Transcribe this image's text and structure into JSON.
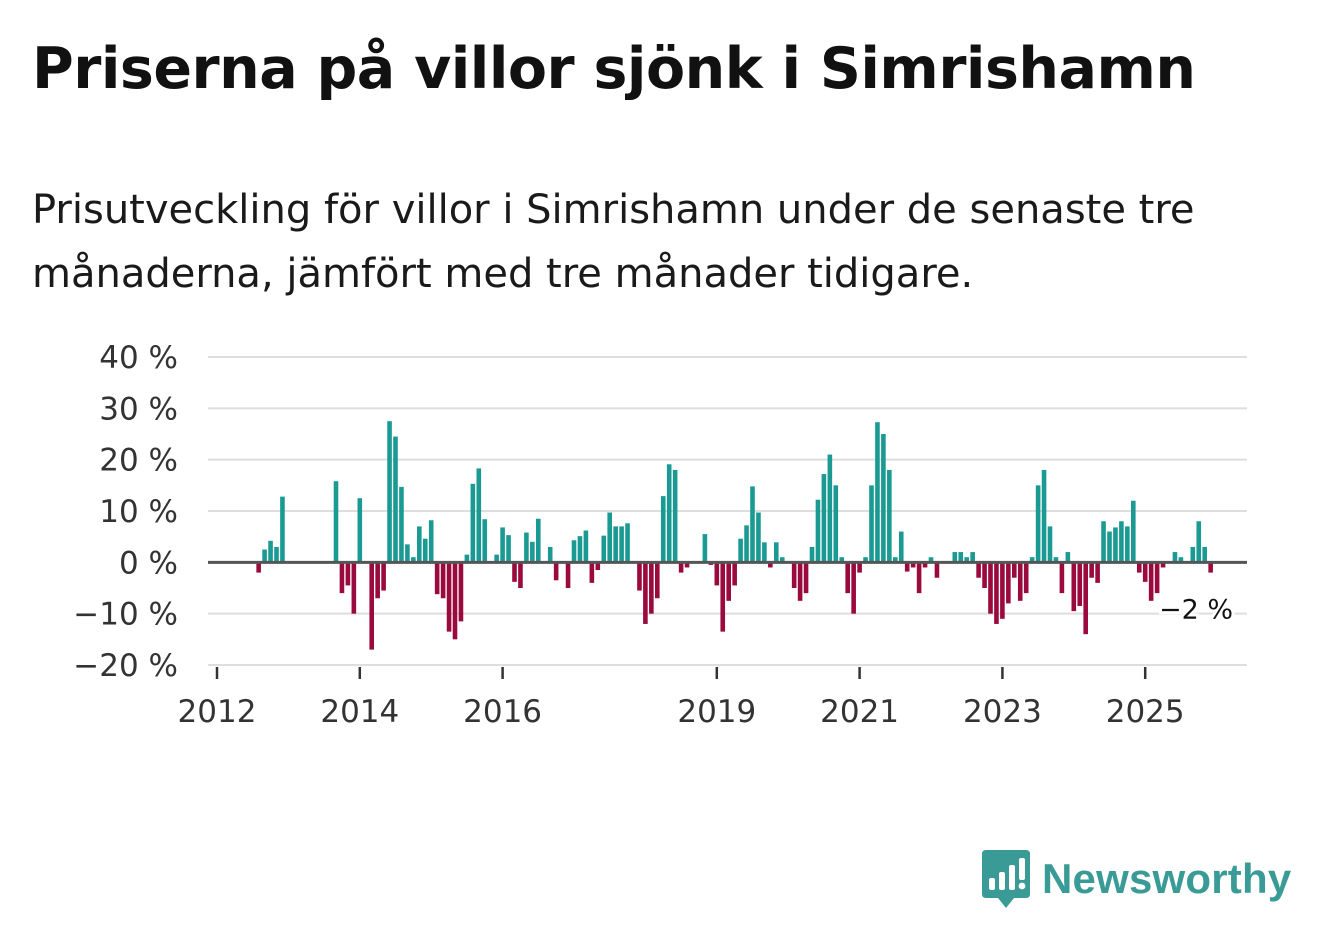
{
  "header": {
    "title": "Priserna på villor sjönk i Simrishamn",
    "subtitle": "Prisutveckling för villor i Simrishamn under de senaste tre månaderna, jämfört med tre månader tidigare."
  },
  "chart_data": {
    "type": "bar",
    "title": "Priserna på villor sjönk i Simrishamn",
    "subtitle": "Prisutveckling för villor i Simrishamn under de senaste tre månaderna, jämfört med tre månader tidigare.",
    "xlabel": "",
    "ylabel": "",
    "unit": "%",
    "x_start": "2012-01",
    "frequency": "monthly",
    "ylim": [
      -20,
      40
    ],
    "y_ticks": [
      -20,
      -10,
      0,
      10,
      20,
      30,
      40
    ],
    "y_tick_labels": [
      "−20 %",
      "−10 %",
      "0 %",
      "10 %",
      "20 %",
      "30 %",
      "40 %"
    ],
    "x_ticks": [
      {
        "label": "2012",
        "index": 0
      },
      {
        "label": "2014",
        "index": 24
      },
      {
        "label": "2016",
        "index": 48
      },
      {
        "label": "2019",
        "index": 84
      },
      {
        "label": "2021",
        "index": 108
      },
      {
        "label": "2023",
        "index": 132
      },
      {
        "label": "2025",
        "index": 156
      }
    ],
    "values": [
      null,
      null,
      null,
      null,
      null,
      null,
      null,
      -2,
      2.5,
      4.2,
      3,
      12.8,
      null,
      null,
      null,
      null,
      null,
      null,
      null,
      null,
      15.8,
      -6,
      -4.5,
      -10,
      12.5,
      null,
      -17,
      -7,
      -5.5,
      27.5,
      24.5,
      14.7,
      3.5,
      1,
      7,
      4.6,
      8.2,
      -6.2,
      -7,
      -13.5,
      -15,
      -11.5,
      1.5,
      15.3,
      18.3,
      8.4,
      null,
      1.5,
      6.8,
      5.3,
      -3.8,
      -5,
      5.8,
      4,
      8.5,
      null,
      3,
      -3.5,
      null,
      -5,
      4.3,
      5.1,
      6.2,
      -4,
      -1.5,
      5.2,
      9.7,
      7,
      7,
      7.6,
      null,
      -5.5,
      -12,
      -10,
      -7,
      12.9,
      19.1,
      18,
      -2,
      -1,
      null,
      null,
      5.5,
      -0.5,
      -4.5,
      -13.5,
      -7.5,
      -4.5,
      4.6,
      7.2,
      14.8,
      9.7,
      3.9,
      -1,
      3.9,
      1,
      null,
      -5,
      -7.5,
      -6,
      3,
      12.2,
      17.2,
      21,
      15,
      1,
      -6,
      -10,
      -2,
      1,
      15,
      27.3,
      25,
      18,
      1,
      6,
      -1.8,
      -1,
      -6,
      -1,
      1,
      -3,
      null,
      null,
      2,
      2,
      1,
      2,
      -3,
      -5,
      -10,
      -12,
      -11,
      -8,
      -3,
      -7.5,
      -6,
      1,
      15,
      18,
      7,
      1,
      -6,
      2,
      -9.5,
      -8.5,
      -14,
      -3,
      -4,
      8,
      6,
      6.8,
      8,
      7,
      12,
      -2,
      -3.8,
      -7.5,
      -6,
      -1,
      null,
      2,
      1,
      null,
      3,
      8,
      3,
      -2
    ],
    "latest_label": "−2 %",
    "colors": {
      "positive": "#1a9a93",
      "negative": "#9a0a3c",
      "zero_line": "#555555",
      "grid": "#dedede",
      "axis_text": "#333333"
    }
  },
  "brand": {
    "name": "Newsworthy",
    "color": "#3a9b96",
    "icon": "bar-chart-speech-bubble-icon"
  }
}
